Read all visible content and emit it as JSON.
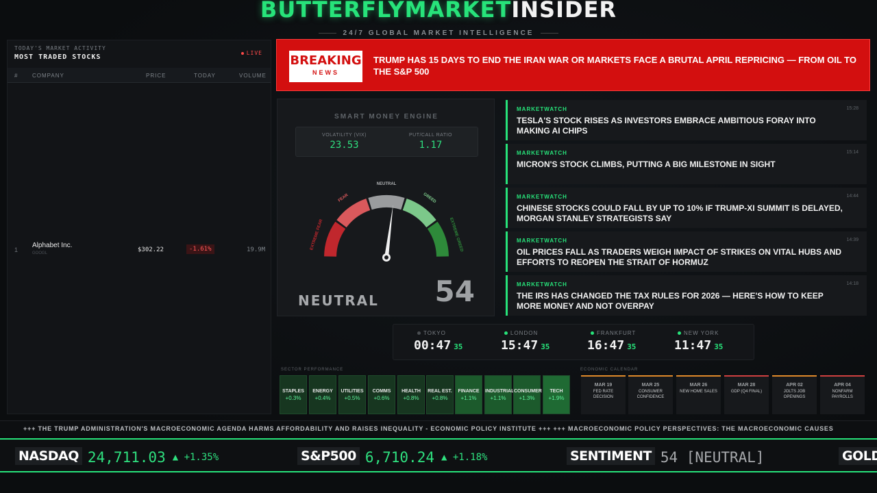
{
  "brand": {
    "part1": "BUTTERFLYMARKET",
    "part2": "INSIDER",
    "tagline": "24/7 GLOBAL MARKET INTELLIGENCE"
  },
  "left_panel": {
    "subtitle": "TODAY'S MARKET ACTIVITY",
    "title": "MOST TRADED STOCKS",
    "live": "LIVE",
    "columns": [
      "#",
      "COMPANY",
      "PRICE",
      "TODAY",
      "VOLUME"
    ],
    "rows": [
      {
        "num": "1",
        "name": "Alphabet Inc.",
        "ticker": "GOOGL",
        "price": "$302.22",
        "change": "-1.61%",
        "volume": "19.9M"
      }
    ]
  },
  "breaking": {
    "label1": "BREAKING",
    "label2": "NEWS",
    "headline": "TRUMP HAS 15 DAYS TO END THE IRAN WAR OR MARKETS FACE A BRUTAL APRIL REPRICING — FROM OIL TO THE S&P 500"
  },
  "gauge": {
    "title": "SMART MONEY ENGINE",
    "vix_label": "VOLATILITY (VIX)",
    "vix_value": "23.53",
    "pcr_label": "PUT/CALL RATIO",
    "pcr_value": "1.17",
    "zones": [
      "EXTREME FEAR",
      "FEAR",
      "NEUTRAL",
      "GREED",
      "EXTREME GREED"
    ],
    "state": "NEUTRAL",
    "score": 54,
    "colors": [
      "#c0272d",
      "#d9595c",
      "#9a9c9e",
      "#7cc88a",
      "#2e8a3a"
    ]
  },
  "news": [
    {
      "source": "MARKETWATCH",
      "time": "15:28",
      "headline": "TESLA'S STOCK RISES AS INVESTORS EMBRACE AMBITIOUS FORAY INTO MAKING AI CHIPS"
    },
    {
      "source": "MARKETWATCH",
      "time": "15:14",
      "headline": "MICRON'S STOCK CLIMBS, PUTTING A BIG MILESTONE IN SIGHT"
    },
    {
      "source": "MARKETWATCH",
      "time": "14:44",
      "headline": "CHINESE STOCKS COULD FALL BY UP TO 10% IF TRUMP-XI SUMMIT IS DELAYED, MORGAN STANLEY STRATEGISTS SAY"
    },
    {
      "source": "MARKETWATCH",
      "time": "14:39",
      "headline": "OIL PRICES FALL AS TRADERS WEIGH IMPACT OF STRIKES ON VITAL HUBS AND EFFORTS TO REOPEN THE STRAIT OF HORMUZ"
    },
    {
      "source": "MARKETWATCH",
      "time": "14:18",
      "headline": "THE IRS HAS CHANGED THE TAX RULES FOR 2026 — HERE'S HOW TO KEEP MORE MONEY AND NOT OVERPAY"
    }
  ],
  "clocks": [
    {
      "city": "TOKYO",
      "time": "00:47",
      "sec": "35",
      "open": false
    },
    {
      "city": "LONDON",
      "time": "15:47",
      "sec": "35",
      "open": true
    },
    {
      "city": "FRANKFURT",
      "time": "16:47",
      "sec": "35",
      "open": true
    },
    {
      "city": "NEW YORK",
      "time": "11:47",
      "sec": "35",
      "open": true
    }
  ],
  "sectors": {
    "label": "SECTOR PERFORMANCE",
    "items": [
      {
        "name": "STAPLES",
        "value": "+0.3%"
      },
      {
        "name": "ENERGY",
        "value": "+0.4%"
      },
      {
        "name": "UTILITIES",
        "value": "+0.5%"
      },
      {
        "name": "COMMS",
        "value": "+0.6%"
      },
      {
        "name": "HEALTH",
        "value": "+0.8%"
      },
      {
        "name": "REAL EST.",
        "value": "+0.8%"
      },
      {
        "name": "FINANCE",
        "value": "+1.1%"
      },
      {
        "name": "INDUSTRIAL",
        "value": "+1.1%"
      },
      {
        "name": "CONSUMER",
        "value": "+1.3%"
      },
      {
        "name": "TECH",
        "value": "+1.9%"
      }
    ]
  },
  "calendar": {
    "label": "ECONOMIC CALENDAR",
    "items": [
      {
        "date": "MAR 19",
        "event": "FED RATE DECISION"
      },
      {
        "date": "MAR 25",
        "event": "CONSUMER CONFIDENCE"
      },
      {
        "date": "MAR 26",
        "event": "NEW HOME SALES"
      },
      {
        "date": "MAR 28",
        "event": "GDP (Q4 FINAL)"
      },
      {
        "date": "APR 02",
        "event": "JOLTS JOB OPENINGS"
      },
      {
        "date": "APR 04",
        "event": "NONFARM PAYROLLS"
      }
    ]
  },
  "ticker": "+++ THE TRUMP ADMINISTRATION'S MACROECONOMIC AGENDA HARMS AFFORDABILITY AND RAISES INEQUALITY - ECONOMIC POLICY INSTITUTE +++ +++ MACROECONOMIC POLICY PERSPECTIVES: THE MACROECONOMIC CAUSES",
  "quotes": [
    {
      "name": "NASDAQ",
      "value": "24,711.03",
      "change": "▲ +1.35%"
    },
    {
      "name": "S&P500",
      "value": "6,710.24",
      "change": "▲ +1.18%"
    },
    {
      "name": "SENTIMENT",
      "value": "54 [NEUTRAL]",
      "change": ""
    },
    {
      "name": "GOLD",
      "value": "",
      "change": ""
    }
  ]
}
